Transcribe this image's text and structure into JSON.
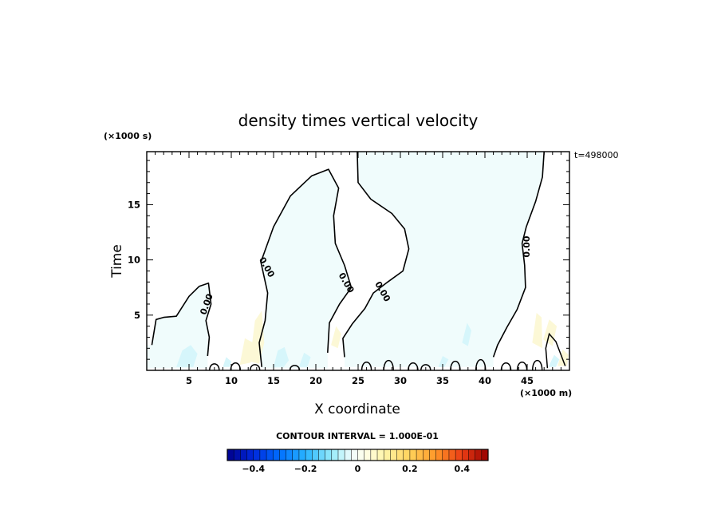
{
  "chart_data": {
    "type": "heatmap",
    "title": "density times vertical velocity",
    "xlabel": "X coordinate",
    "ylabel": "Time",
    "x_unit": "(×1000 m)",
    "y_unit": "(×1000 s)",
    "time_stamp": "t=498000",
    "xlim": [
      0,
      50
    ],
    "ylim": [
      0,
      19.8
    ],
    "x_ticks": [
      5,
      10,
      15,
      20,
      25,
      30,
      35,
      40,
      45
    ],
    "y_ticks": [
      5,
      10,
      15
    ],
    "contour_label": "0.00",
    "contour_interval_text": "CONTOUR INTERVAL = 1.000E-01",
    "colorbar": {
      "range": [
        -0.5,
        0.5
      ],
      "ticks": [
        {
          "value": -0.4,
          "label": "−0.4"
        },
        {
          "value": -0.2,
          "label": "−0.2"
        },
        {
          "value": 0,
          "label": "0"
        },
        {
          "value": 0.2,
          "label": "0.2"
        },
        {
          "value": 0.4,
          "label": "0.4"
        }
      ]
    },
    "colors": {
      "negative_fill": "#f0fcfc",
      "cyan_patch": "#d6f6fb",
      "yellow_patch": "#fcf8d6",
      "contour": "#000000"
    },
    "zero_contours": [
      {
        "name": "c1",
        "points": [
          [
            0.6,
            2.3
          ],
          [
            1.1,
            4.6
          ],
          [
            2.0,
            4.8
          ],
          [
            3.5,
            4.9
          ],
          [
            5.0,
            6.7
          ],
          [
            6.2,
            7.6
          ],
          [
            7.3,
            7.9
          ],
          [
            7.6,
            6.0
          ],
          [
            7.0,
            4.5
          ],
          [
            7.4,
            3.0
          ],
          [
            7.2,
            1.3
          ]
        ]
      },
      {
        "name": "c2",
        "points": [
          [
            13.6,
            0.3
          ],
          [
            13.3,
            2.5
          ],
          [
            14.0,
            4.5
          ],
          [
            14.3,
            7.0
          ],
          [
            13.5,
            9.8
          ],
          [
            15.0,
            13.0
          ],
          [
            17.0,
            15.8
          ],
          [
            19.5,
            17.6
          ],
          [
            21.5,
            18.2
          ],
          [
            22.7,
            16.5
          ],
          [
            22.1,
            14.0
          ],
          [
            22.3,
            11.5
          ],
          [
            23.4,
            9.5
          ],
          [
            24.2,
            7.5
          ],
          [
            22.8,
            6.0
          ],
          [
            21.6,
            4.3
          ],
          [
            21.4,
            1.6
          ]
        ]
      },
      {
        "name": "c3",
        "points": [
          [
            24.9,
            19.8
          ],
          [
            25.0,
            17.0
          ],
          [
            26.5,
            15.5
          ],
          [
            29.0,
            14.2
          ],
          [
            30.5,
            12.8
          ],
          [
            31.0,
            11.0
          ],
          [
            30.3,
            9.0
          ],
          [
            28.5,
            8.0
          ],
          [
            26.8,
            7.0
          ],
          [
            25.8,
            5.6
          ],
          [
            24.3,
            4.2
          ],
          [
            23.2,
            2.9
          ],
          [
            23.4,
            1.2
          ]
        ]
      },
      {
        "name": "c4",
        "points": [
          [
            47.0,
            19.8
          ],
          [
            46.8,
            17.5
          ],
          [
            46.0,
            15.3
          ],
          [
            44.9,
            13.0
          ],
          [
            44.4,
            11.5
          ],
          [
            44.7,
            9.5
          ],
          [
            44.8,
            7.5
          ],
          [
            43.8,
            5.5
          ],
          [
            42.6,
            3.9
          ],
          [
            41.5,
            2.3
          ],
          [
            41.0,
            1.2
          ]
        ]
      }
    ],
    "contour_labels_at": [
      [
        7.4,
        5.9
      ],
      [
        13.9,
        9.2
      ],
      [
        23.3,
        7.8
      ],
      [
        27.6,
        7.0
      ],
      [
        45.3,
        11.2
      ]
    ]
  }
}
